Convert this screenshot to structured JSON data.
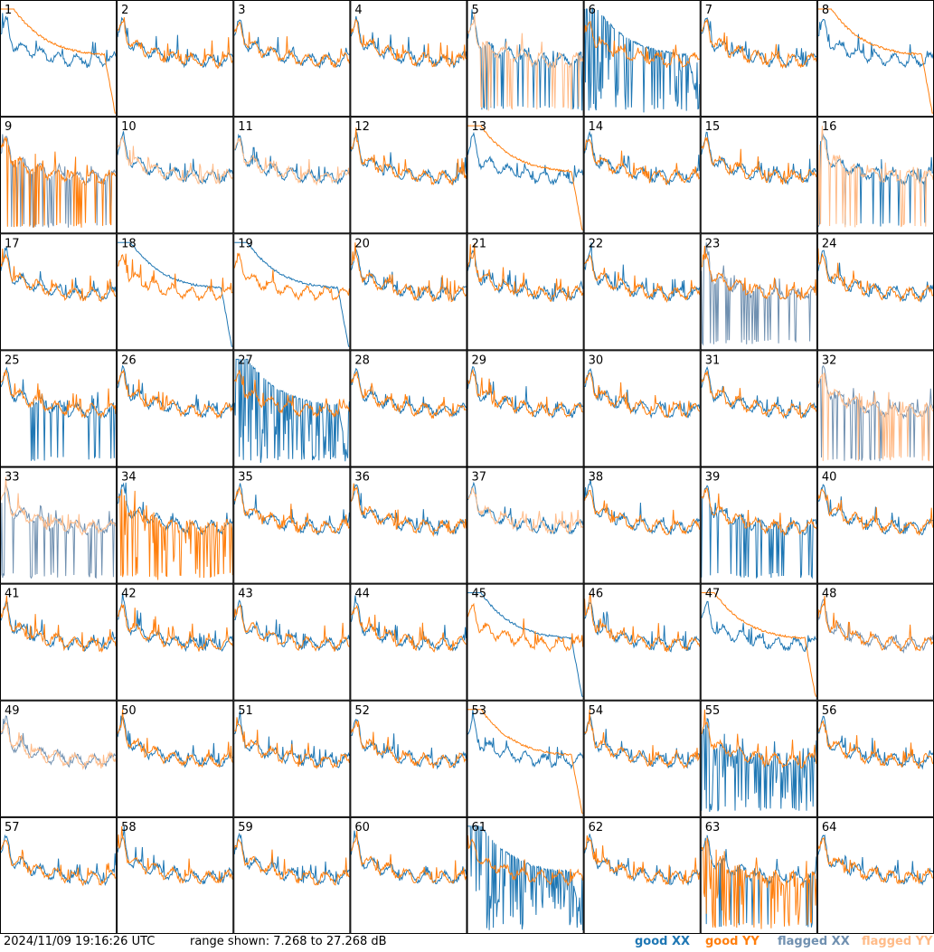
{
  "chart_data": {
    "type": "line",
    "panel_count": 64,
    "grid": {
      "rows": 8,
      "cols": 8
    },
    "panel_labels": [
      "1",
      "2",
      "3",
      "4",
      "5",
      "6",
      "7",
      "8",
      "9",
      "10",
      "11",
      "12",
      "13",
      "14",
      "15",
      "16",
      "17",
      "18",
      "19",
      "20",
      "21",
      "22",
      "23",
      "24",
      "25",
      "26",
      "27",
      "28",
      "29",
      "30",
      "31",
      "32",
      "33",
      "34",
      "35",
      "36",
      "37",
      "38",
      "39",
      "40",
      "41",
      "42",
      "43",
      "44",
      "45",
      "46",
      "47",
      "48",
      "49",
      "50",
      "51",
      "52",
      "53",
      "54",
      "55",
      "56",
      "57",
      "58",
      "59",
      "60",
      "61",
      "62",
      "63",
      "64"
    ],
    "range": {
      "min_db": 7.268,
      "max_db": 27.268,
      "unit": "dB"
    },
    "legend": [
      {
        "label": "good XX",
        "color": "#1f77b4"
      },
      {
        "label": "good YY",
        "color": "#ff7f0e"
      },
      {
        "label": "flagged XX",
        "color": "#7090b0"
      },
      {
        "label": "flagged YY",
        "color": "#ffbb88"
      }
    ],
    "flagged": {
      "xx": [
        9,
        23,
        32,
        33,
        48,
        49
      ],
      "yy": [
        5,
        10,
        11,
        16,
        32,
        33,
        37,
        49
      ]
    },
    "dropouts": {
      "xx": [
        5,
        6,
        9,
        16,
        23,
        25,
        27,
        32,
        33,
        39,
        55,
        63
      ],
      "yy": [
        5,
        9,
        16,
        32,
        34,
        63
      ]
    },
    "anomalies": {
      "xx_decay": [
        6,
        18,
        19,
        27,
        45,
        61
      ],
      "yy_decay": [
        1,
        8,
        13,
        47,
        53
      ],
      "xx_spiky": [
        6,
        27,
        55,
        61
      ],
      "yy_spiky": [
        34,
        63
      ]
    },
    "x_axis_shown": false,
    "y_axis_shown": false
  },
  "footer": {
    "timestamp": "2024/11/09 19:16:26 UTC",
    "range_text": "range shown: 7.268 to 27.268 dB"
  }
}
